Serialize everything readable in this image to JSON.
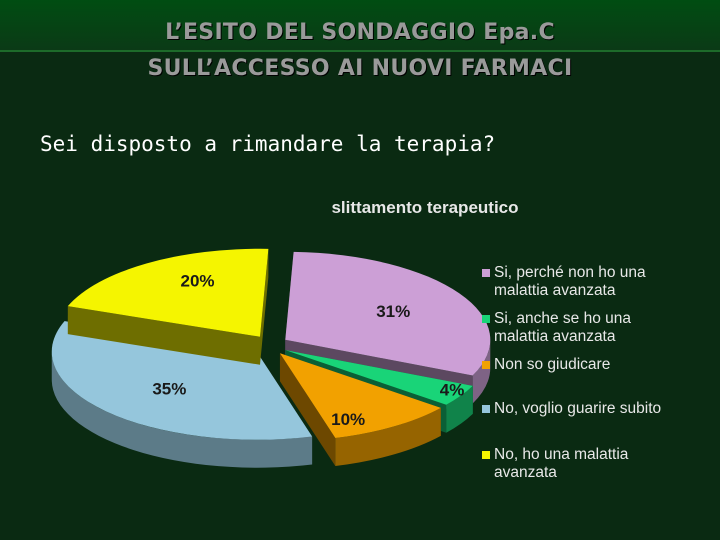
{
  "header": {
    "title_line1": "L’ESITO DEL SONDAGGIO Epa.C",
    "title_line2": "SULL’ACCESSO AI NUOVI FARMACI"
  },
  "question": "Sei disposto a rimandare la terapia?",
  "chart_data": {
    "type": "pie",
    "style": "3d-exploded",
    "title": "slittamento terapeutico",
    "legend_position": "right",
    "slices": [
      {
        "label": "Si, perché non ho una malattia avanzata",
        "value": 31,
        "value_label": "31%",
        "color": "#cc9fd6"
      },
      {
        "label": "Si, anche se ho una malattia avanzata",
        "value": 4,
        "value_label": "4%",
        "color": "#19d478"
      },
      {
        "label": "Non so giudicare",
        "value": 10,
        "value_label": "10%",
        "color": "#f2a100"
      },
      {
        "label": "No, voglio guarire subito",
        "value": 35,
        "value_label": "35%",
        "color": "#95c6dc"
      },
      {
        "label": "No, ho una malattia avanzata",
        "value": 20,
        "value_label": "20%",
        "color": "#f5f500"
      }
    ]
  },
  "legend": [
    {
      "line1": "Si, perché non ho una",
      "line2": "malattia avanzata",
      "color": "#cc9fd6"
    },
    {
      "line1": "Si, anche se ho una",
      "line2": "malattia avanzata",
      "color": "#19d478"
    },
    {
      "line1": "Non so giudicare",
      "line2": "",
      "color": "#f2a100"
    },
    {
      "line1": "No, voglio guarire subito",
      "line2": "",
      "color": "#95c6dc"
    },
    {
      "line1": "No, ho una malattia",
      "line2": "avanzata",
      "color": "#f5f500"
    }
  ]
}
